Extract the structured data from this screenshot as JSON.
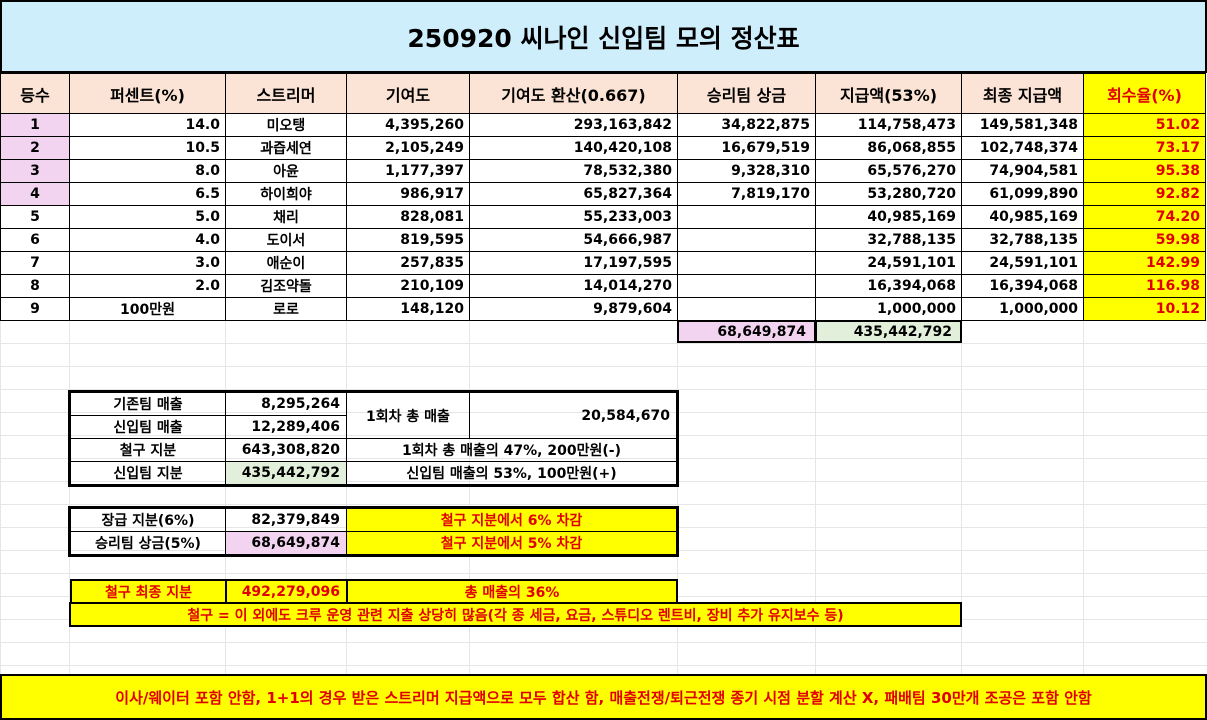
{
  "title": "250920 씨나인 신입팀 모의 정산표",
  "headers": [
    "등수",
    "퍼센트(%)",
    "스트리머",
    "기여도",
    "기여도 환산(0.667)",
    "승리팀 상금",
    "지급액(53%)",
    "최종 지급액",
    "회수율(%)"
  ],
  "rows": [
    {
      "rank": "1",
      "pct": "14.0",
      "name": "미오탱",
      "contrib": "4,395,260",
      "conv": "293,163,842",
      "prize": "34,822,875",
      "pay": "114,758,473",
      "final": "149,581,348",
      "rate": "51.02"
    },
    {
      "rank": "2",
      "pct": "10.5",
      "name": "과즙세연",
      "contrib": "2,105,249",
      "conv": "140,420,108",
      "prize": "16,679,519",
      "pay": "86,068,855",
      "final": "102,748,374",
      "rate": "73.17"
    },
    {
      "rank": "3",
      "pct": "8.0",
      "name": "아윤",
      "contrib": "1,177,397",
      "conv": "78,532,380",
      "prize": "9,328,310",
      "pay": "65,576,270",
      "final": "74,904,581",
      "rate": "95.38"
    },
    {
      "rank": "4",
      "pct": "6.5",
      "name": "하이희야",
      "contrib": "986,917",
      "conv": "65,827,364",
      "prize": "7,819,170",
      "pay": "53,280,720",
      "final": "61,099,890",
      "rate": "92.82"
    },
    {
      "rank": "5",
      "pct": "5.0",
      "name": "채리",
      "contrib": "828,081",
      "conv": "55,233,003",
      "prize": "",
      "pay": "40,985,169",
      "final": "40,985,169",
      "rate": "74.20"
    },
    {
      "rank": "6",
      "pct": "4.0",
      "name": "도이서",
      "contrib": "819,595",
      "conv": "54,666,987",
      "prize": "",
      "pay": "32,788,135",
      "final": "32,788,135",
      "rate": "59.98"
    },
    {
      "rank": "7",
      "pct": "3.0",
      "name": "애순이",
      "contrib": "257,835",
      "conv": "17,197,595",
      "prize": "",
      "pay": "24,591,101",
      "final": "24,591,101",
      "rate": "142.99"
    },
    {
      "rank": "8",
      "pct": "2.0",
      "name": "김조약돌",
      "contrib": "210,109",
      "conv": "14,014,270",
      "prize": "",
      "pay": "16,394,068",
      "final": "16,394,068",
      "rate": "116.98"
    },
    {
      "rank": "9",
      "pct": "100만원",
      "name": "로로",
      "contrib": "148,120",
      "conv": "9,879,604",
      "prize": "",
      "pay": "1,000,000",
      "final": "1,000,000",
      "rate": "10.12"
    }
  ],
  "totals": {
    "prize": "68,649,874",
    "pay": "435,442,792"
  },
  "summary": {
    "existing_label": "기존팀 매출",
    "existing_value": "8,295,264",
    "new_label": "신입팀 매출",
    "new_value": "12,289,406",
    "round_total_label": "1회차 총 매출",
    "round_total_value": "20,584,670",
    "chulgu_label": "철구 지분",
    "chulgu_value": "643,308,820",
    "chulgu_note": "1회차 총 매출의 47%, 200만원(-)",
    "newteam_label": "신입팀 지분",
    "newteam_value": "435,442,792",
    "newteam_note": "신입팀 매출의 53%, 100만원(+)"
  },
  "deductions": {
    "bonus_label": "장급 지분(6%)",
    "bonus_value": "82,379,849",
    "bonus_note": "철구 지분에서 6% 차감",
    "prize_label": "승리팀 상금(5%)",
    "prize_value": "68,649,874",
    "prize_note": "철구 지분에서 5% 차감"
  },
  "final_share": {
    "label": "철구 최종 지분",
    "value": "492,279,096",
    "note": "총 매출의 36%"
  },
  "expense_note": "철구 = 이 외에도 크루 운영 관련 지출 상당히 많음(각 종 세금, 요금, 스튜디오 렌트비, 장비 추가 유지보수 등)",
  "footer": "이사/웨이터 포함 안함, 1+1의 경우 받은 스트리머 지급액으로 모두 합산 함, 매출전쟁/퇴근전쟁 종기 시점 분할 계산 X, 패배팀 30만개 조공은 포함 안함",
  "colors": {
    "title_bg": "#cfeefc",
    "header_bg": "#fbe4d5",
    "highlight": "#ffff00",
    "alert_text": "#e00000",
    "rank_bg": "#f2d4f0",
    "green_bg": "#e2efda"
  }
}
